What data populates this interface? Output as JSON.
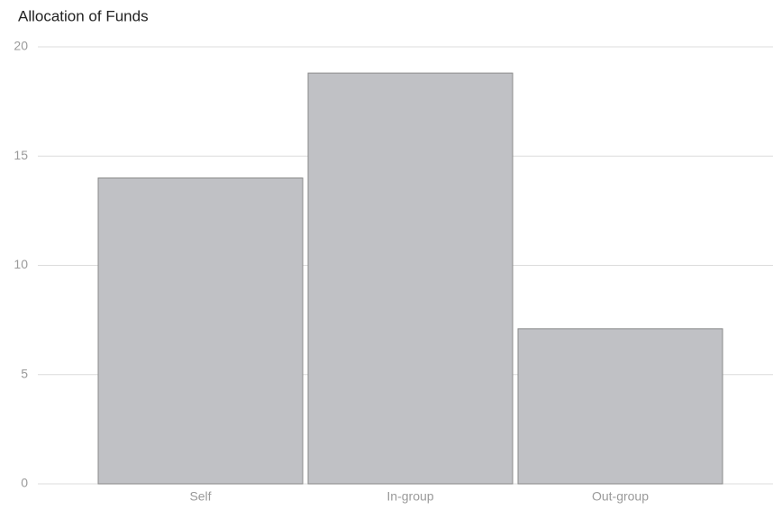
{
  "chart_data": {
    "type": "bar",
    "title": "Allocation of Funds",
    "categories": [
      "Self",
      "In-group",
      "Out-group"
    ],
    "values": [
      14,
      18.8,
      7.1
    ],
    "color": "#c0c1c5",
    "ylim": [
      0,
      20
    ],
    "yticks": [
      0,
      5,
      10,
      15,
      20
    ],
    "grid": true
  }
}
